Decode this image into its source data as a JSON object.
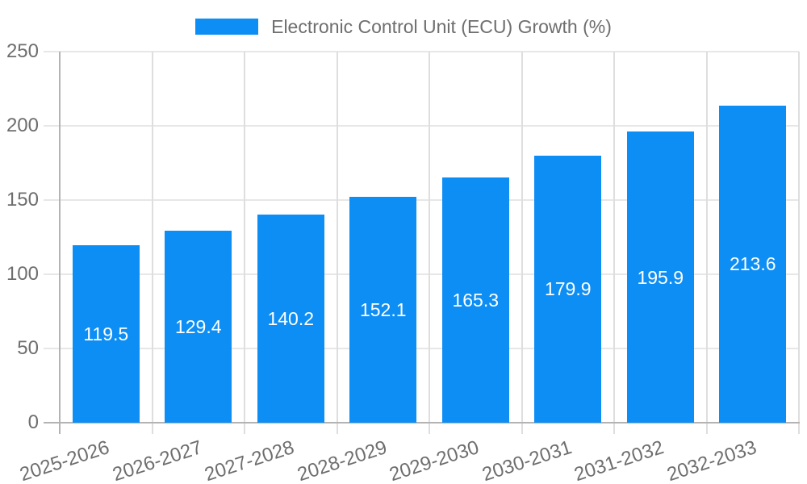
{
  "chart_data": {
    "type": "bar",
    "title": "",
    "legend": "Electronic Control Unit (ECU) Growth (%)",
    "legend_position": "top",
    "categories": [
      "2025-2026",
      "2026-2027",
      "2027-2028",
      "2028-2029",
      "2029-2030",
      "2030-2031",
      "2031-2032",
      "2032-2033"
    ],
    "values": [
      119.5,
      129.4,
      140.2,
      152.1,
      165.3,
      179.9,
      195.9,
      213.6
    ],
    "xlabel": "",
    "ylabel": "",
    "ylim": [
      0,
      250
    ],
    "ytick_step": 50,
    "yticks": [
      0,
      50,
      100,
      150,
      200,
      250
    ],
    "grid": true,
    "value_labels_shown": true,
    "x_label_rotation_deg": -18
  },
  "colors": {
    "bar": "#0d8ef4",
    "text": "#6e6e6e",
    "grid_h": "#e7e7e7",
    "grid_v": "#dedede",
    "axis": "#b3b3b3",
    "value_label": "#ffffff",
    "background": "#ffffff"
  }
}
